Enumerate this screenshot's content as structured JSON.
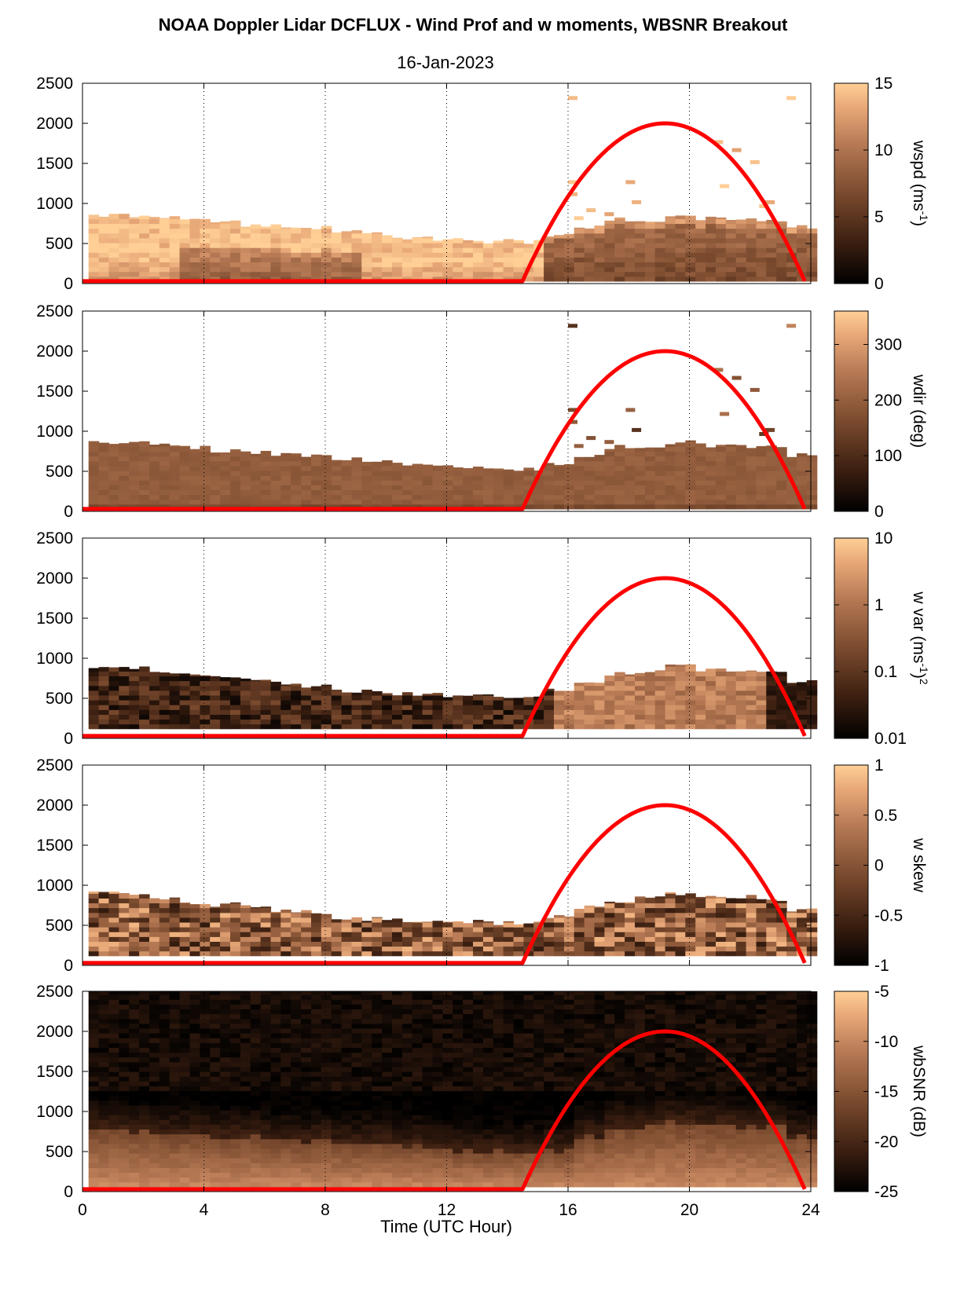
{
  "figure": {
    "title": "NOAA Doppler Lidar DCFLUX - Wind Prof and w moments, WBSNR Breakout",
    "date": "16-Jan-2023",
    "xlabel": "Time (UTC Hour)"
  },
  "colors": {
    "overlay_line": "#ff0000",
    "grid_line": "#000000",
    "colormap": [
      "#000000",
      "#3a1e10",
      "#7a4a2e",
      "#b77a55",
      "#e8a878",
      "#ffcf96"
    ]
  },
  "chart_data": [
    {
      "type": "heatmap",
      "ylabel_html": "wspd (ms<tspan baseline-shift=\"super\" font-size=\"14\">-1</tspan>)",
      "ylabel": "wspd (ms-1)",
      "colorbar": {
        "label": "wspd (ms-1)",
        "min": 0,
        "max": 15,
        "scale": "linear",
        "ticks": [
          0,
          5,
          10,
          15
        ],
        "tick_labels": [
          "0",
          "5",
          "10",
          "15"
        ]
      },
      "xlim": [
        0,
        24
      ],
      "ylim": [
        0,
        2500
      ],
      "x_ticks": [
        0,
        4,
        8,
        12,
        16,
        20,
        24
      ],
      "y_ticks": [
        0,
        500,
        1000,
        1500,
        2000,
        2500
      ],
      "grid": "vertical dotted at 4-hour intervals",
      "overlay": {
        "name": "",
        "x_start": 0,
        "x_rise": 14.5,
        "x_peak": 19.2,
        "x_end": 23.8,
        "y_peak": 2000,
        "y_base": 30
      },
      "field": "wspd",
      "range_min_m": 30,
      "top_m_by_hour": [
        850,
        850,
        820,
        790,
        760,
        730,
        720,
        700,
        660,
        630,
        580,
        560,
        540,
        530,
        520,
        600,
        700,
        800,
        800,
        860,
        820,
        820,
        800,
        700
      ],
      "notes": "Top layer mostly near 15 m/s; low wind speeds near the surface 4-8 UTC; moderate 5-8 m/s after 16 UTC; scattered retrievals above the layer."
    },
    {
      "type": "heatmap",
      "ylabel": "wdir (deg)",
      "colorbar": {
        "label": "wdir (deg)",
        "min": 0,
        "max": 360,
        "scale": "linear",
        "ticks": [
          0,
          100,
          200,
          300
        ],
        "tick_labels": [
          "0",
          "100",
          "200",
          "300"
        ]
      },
      "xlim": [
        0,
        24
      ],
      "ylim": [
        0,
        2500
      ],
      "x_ticks": [
        0,
        4,
        8,
        12,
        16,
        20,
        24
      ],
      "y_ticks": [
        0,
        500,
        1000,
        1500,
        2000,
        2500
      ],
      "grid": "vertical dotted at 4-hour intervals",
      "overlay": {
        "name": "",
        "x_start": 0,
        "x_rise": 14.5,
        "x_peak": 19.2,
        "x_end": 23.8,
        "y_peak": 2000,
        "y_base": 30
      },
      "field": "wdir",
      "range_min_m": 30,
      "top_m_by_hour": [
        850,
        850,
        820,
        790,
        760,
        730,
        720,
        700,
        660,
        630,
        580,
        560,
        540,
        530,
        520,
        600,
        700,
        800,
        800,
        860,
        820,
        820,
        800,
        700
      ],
      "notes": "Direction near 150 deg throughout the layer."
    },
    {
      "type": "heatmap",
      "ylabel_html": "w var (ms<tspan baseline-shift=\"super\" font-size=\"14\">-1</tspan>)<tspan baseline-shift=\"super\" font-size=\"14\">2</tspan>",
      "ylabel": "w var (ms-1)2",
      "colorbar": {
        "label": "w var (ms-1)2",
        "min": 0.01,
        "max": 10,
        "scale": "log",
        "ticks": [
          0.01,
          0.1,
          1,
          10
        ],
        "tick_labels": [
          "0.01",
          "0.1",
          "1",
          "10"
        ]
      },
      "xlim": [
        0,
        24
      ],
      "ylim": [
        0,
        2500
      ],
      "x_ticks": [
        0,
        4,
        8,
        12,
        16,
        20,
        24
      ],
      "y_ticks": [
        0,
        500,
        1000,
        1500,
        2000,
        2500
      ],
      "grid": "vertical dotted at 4-hour intervals",
      "overlay": {
        "name": "",
        "x_start": 0,
        "x_rise": 14.5,
        "x_peak": 19.2,
        "x_end": 23.8,
        "y_peak": 2000,
        "y_base": 30
      },
      "field": "wvar",
      "range_min_m": 120,
      "top_m_by_hour": [
        900,
        880,
        830,
        790,
        760,
        720,
        690,
        660,
        600,
        580,
        560,
        540,
        540,
        530,
        520,
        600,
        720,
        800,
        840,
        900,
        850,
        850,
        820,
        700
      ],
      "notes": "Low variance (~0.02-0.05) overnight; higher variance (~0.3-1) during 16-22 UTC; low near 23 UTC."
    },
    {
      "type": "heatmap",
      "ylabel": "w skew",
      "colorbar": {
        "label": "w skew",
        "min": -1,
        "max": 1,
        "scale": "linear",
        "ticks": [
          -1,
          -0.5,
          0,
          0.5,
          1
        ],
        "tick_labels": [
          "-1",
          "-0.5",
          "0",
          "0.5",
          "1"
        ]
      },
      "xlim": [
        0,
        24
      ],
      "ylim": [
        0,
        2500
      ],
      "x_ticks": [
        0,
        4,
        8,
        12,
        16,
        20,
        24
      ],
      "y_ticks": [
        0,
        500,
        1000,
        1500,
        2000,
        2500
      ],
      "grid": "vertical dotted at 4-hour intervals",
      "overlay": {
        "name": "",
        "x_start": 0,
        "x_rise": 14.5,
        "x_peak": 19.2,
        "x_end": 23.8,
        "y_peak": 2000,
        "y_base": 30
      },
      "field": "wskew",
      "range_min_m": 120,
      "top_m_by_hour": [
        900,
        880,
        830,
        790,
        760,
        720,
        690,
        660,
        600,
        580,
        560,
        540,
        540,
        530,
        520,
        600,
        720,
        800,
        840,
        900,
        850,
        850,
        820,
        700
      ],
      "notes": "Noisy skewness, mostly between -0.5 and 0.8."
    },
    {
      "type": "heatmap",
      "ylabel": "wbSNR (dB)",
      "colorbar": {
        "label": "wbSNR (dB)",
        "min": -25,
        "max": -5,
        "scale": "linear",
        "ticks": [
          -25,
          -20,
          -15,
          -10,
          -5
        ],
        "tick_labels": [
          "-25",
          "-20",
          "-15",
          "-10",
          "-5"
        ]
      },
      "xlim": [
        0,
        24
      ],
      "ylim": [
        0,
        2500
      ],
      "x_ticks": [
        0,
        4,
        8,
        12,
        16,
        20,
        24
      ],
      "x_tick_labels": [
        "0",
        "4",
        "8",
        "12",
        "16",
        "20",
        "24"
      ],
      "y_ticks": [
        0,
        500,
        1000,
        1500,
        2000,
        2500
      ],
      "grid": "vertical dotted at 4-hour intervals",
      "overlay": {
        "name": "",
        "x_start": 0,
        "x_rise": 14.5,
        "x_peak": 19.2,
        "x_end": 23.8,
        "y_peak": 2000,
        "y_base": 30
      },
      "field": "snr",
      "range_min_m": 60,
      "top_m_by_hour": [
        750,
        720,
        700,
        680,
        660,
        640,
        620,
        600,
        580,
        560,
        540,
        520,
        500,
        480,
        460,
        500,
        650,
        750,
        800,
        850,
        820,
        800,
        780,
        650
      ],
      "notes": "SNR near -12 dB close to the surface, decreasing to below -24 dB aloft."
    }
  ]
}
